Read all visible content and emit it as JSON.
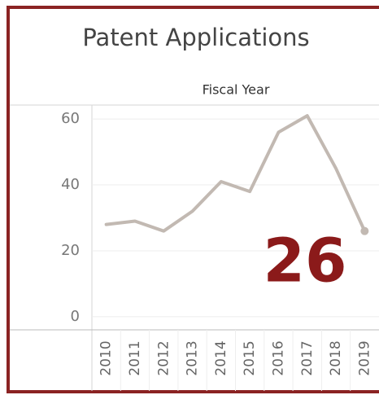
{
  "chart_data": {
    "type": "line",
    "title": "Patent Applications",
    "subtitle": "Fiscal Year",
    "categories": [
      "2010",
      "2011",
      "2012",
      "2013",
      "2014",
      "2015",
      "2016",
      "2017",
      "2018",
      "2019"
    ],
    "values": [
      28,
      29,
      26,
      32,
      41,
      38,
      56,
      61,
      45,
      26
    ],
    "color": "#c2b9b2",
    "annotation": "26",
    "annotation_color": "#8b1a1a",
    "ylim": [
      -4,
      64
    ],
    "yticks": [
      0,
      20,
      40,
      60
    ],
    "grid": true
  }
}
